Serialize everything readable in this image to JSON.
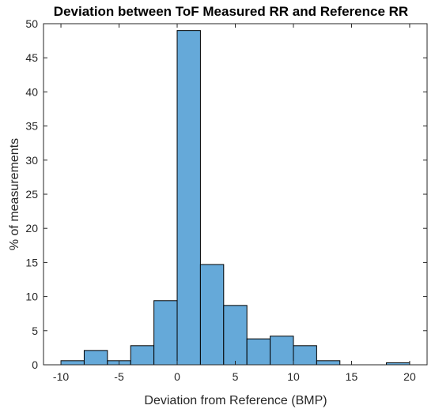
{
  "chart_data": {
    "type": "bar",
    "title": "Deviation between ToF Measured RR and Reference RR",
    "xlabel": "Deviation from Reference (BMP)",
    "ylabel": "% of measurements",
    "xlim": [
      -11.5,
      21.5
    ],
    "ylim": [
      0,
      50
    ],
    "xticks": [
      "-10",
      "-5",
      "0",
      "5",
      "10",
      "15",
      "20"
    ],
    "yticks": [
      "0",
      "5",
      "10",
      "15",
      "20",
      "25",
      "30",
      "35",
      "40",
      "45",
      "50"
    ],
    "bar_color": "#65A9D9",
    "edge_color": "#000000",
    "bins": [
      {
        "x0": -10,
        "x1": -8,
        "value": 0.6
      },
      {
        "x0": -8,
        "x1": -6,
        "value": 2.1
      },
      {
        "x0": -6,
        "x1": -4,
        "value": 0.6
      },
      {
        "x0": -4,
        "x1": -2,
        "value": 2.8
      },
      {
        "x0": -2,
        "x1": 0,
        "value": 9.4
      },
      {
        "x0": 0,
        "x1": 2,
        "value": 49.0
      },
      {
        "x0": 2,
        "x1": 4,
        "value": 14.7
      },
      {
        "x0": 4,
        "x1": 6,
        "value": 8.7
      },
      {
        "x0": 6,
        "x1": 8,
        "value": 3.8
      },
      {
        "x0": 8,
        "x1": 10,
        "value": 4.2
      },
      {
        "x0": 10,
        "x1": 12,
        "value": 2.8
      },
      {
        "x0": 12,
        "x1": 14,
        "value": 0.6
      },
      {
        "x0": 18,
        "x1": 20,
        "value": 0.3
      }
    ]
  }
}
